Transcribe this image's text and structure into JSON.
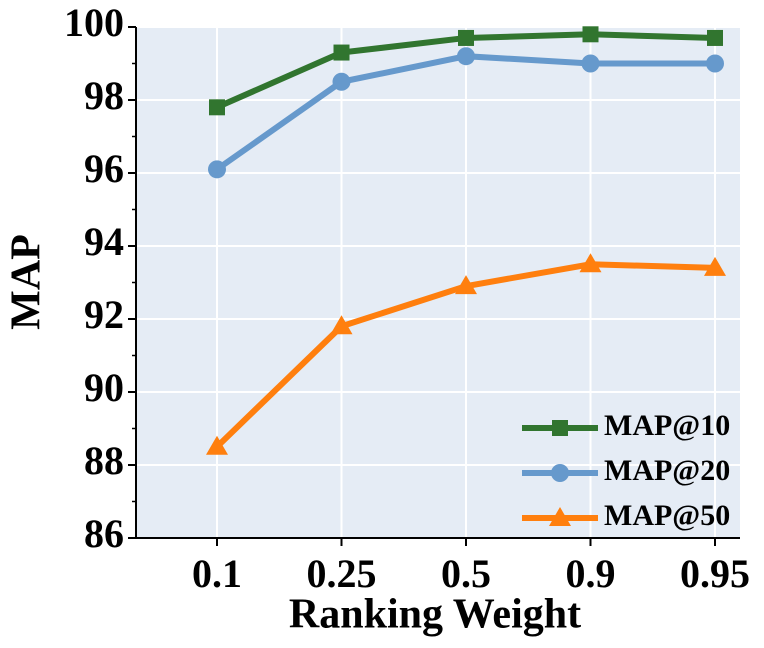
{
  "chart_data": {
    "type": "line",
    "x_label": "Ranking Weight",
    "y_label": "MAP",
    "categories": [
      "0.1",
      "0.25",
      "0.5",
      "0.9",
      "0.95"
    ],
    "series": [
      {
        "name": "MAP@10",
        "color": "#31752f",
        "marker": "square",
        "values": [
          97.8,
          99.3,
          99.7,
          99.8,
          99.7
        ]
      },
      {
        "name": "MAP@20",
        "color": "#6699cc",
        "marker": "circle",
        "values": [
          96.1,
          98.5,
          99.2,
          99.0,
          99.0
        ]
      },
      {
        "name": "MAP@50",
        "color": "#ff7f0e",
        "marker": "triangle",
        "values": [
          88.5,
          91.8,
          92.9,
          93.5,
          93.4
        ]
      }
    ],
    "ylim": [
      86,
      100
    ],
    "yticks": [
      86,
      88,
      90,
      92,
      94,
      96,
      98,
      100
    ],
    "yminorticks": [
      87,
      89,
      91,
      93,
      95,
      97,
      99
    ],
    "grid": true,
    "legend": "lower right"
  }
}
